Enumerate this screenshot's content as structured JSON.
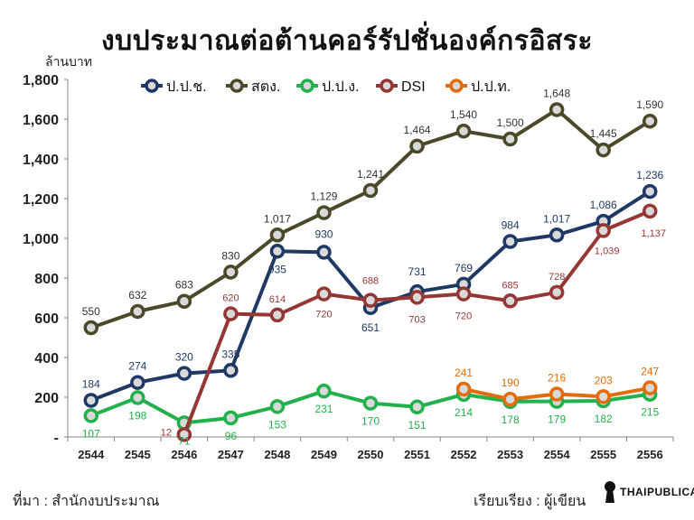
{
  "title": "งบประมาณต่อต้านคอร์รัปชั่นองค์กรอิสระ",
  "source": "ที่มา : สำนักงบประมาณ",
  "credit": "เรียบเรียง : ผู้เขียน",
  "logo_text": "THAIPUBLICA",
  "chart_data": {
    "type": "line",
    "ylabel": "ล้านบาท",
    "xlabel": "",
    "categories": [
      "2544",
      "2545",
      "2546",
      "2547",
      "2548",
      "2549",
      "2550",
      "2551",
      "2552",
      "2553",
      "2554",
      "2555",
      "2556"
    ],
    "ylim": [
      0,
      1800
    ],
    "yticks": [
      0,
      200,
      400,
      600,
      800,
      1000,
      1200,
      1400,
      1600,
      1800
    ],
    "ytick_labels": [
      "-",
      "200",
      "400",
      "600",
      "800",
      "1,000",
      "1,200",
      "1,400",
      "1,600",
      "1,800"
    ],
    "legend_position": "top",
    "series": [
      {
        "name": "ป.ป.ช.",
        "color": "#1f3864",
        "label_color": "#1f3864",
        "values": [
          184,
          274,
          320,
          335,
          935,
          930,
          651,
          731,
          769,
          984,
          1017,
          1086,
          1236
        ],
        "labels": [
          "184",
          "274",
          "320",
          "335",
          "935",
          "930",
          "651",
          "731",
          "769",
          "984",
          "1,017",
          "1,086",
          "1,236"
        ]
      },
      {
        "name": "สตง.",
        "color": "#4a4a2a",
        "label_color": "#333333",
        "values": [
          550,
          632,
          683,
          830,
          1017,
          1129,
          1241,
          1464,
          1540,
          1500,
          1648,
          1445,
          1590
        ],
        "labels": [
          "550",
          "632",
          "683",
          "830",
          "1,017",
          "1,129",
          "1,241",
          "1,464",
          "1,540",
          "1,500",
          "1,648",
          "1,445",
          "1,590"
        ]
      },
      {
        "name": "ป.ป.ง.",
        "color": "#22b14c",
        "label_color": "#22b14c",
        "values": [
          107,
          198,
          71,
          96,
          153,
          231,
          170,
          151,
          214,
          178,
          179,
          182,
          215
        ],
        "labels": [
          "107",
          "198",
          "71",
          "96",
          "153",
          "231",
          "170",
          "151",
          "214",
          "178",
          "179",
          "182",
          "215"
        ]
      },
      {
        "name": "DSI",
        "color": "#953735",
        "label_color": "#953735",
        "values": [
          null,
          null,
          12,
          620,
          614,
          720,
          688,
          703,
          720,
          685,
          728,
          1039,
          1137
        ],
        "labels": [
          null,
          null,
          "12",
          "620",
          "614",
          "720",
          "688",
          "703",
          "720",
          "685",
          "728",
          "1,039",
          "1,137"
        ]
      },
      {
        "name": "ป.ป.ท.",
        "color": "#e46c0a",
        "label_color": "#e46c0a",
        "values": [
          null,
          null,
          null,
          null,
          null,
          null,
          null,
          null,
          241,
          190,
          216,
          203,
          247
        ],
        "labels": [
          null,
          null,
          null,
          null,
          null,
          null,
          null,
          null,
          "241",
          "190",
          "216",
          "203",
          "247"
        ]
      }
    ]
  }
}
